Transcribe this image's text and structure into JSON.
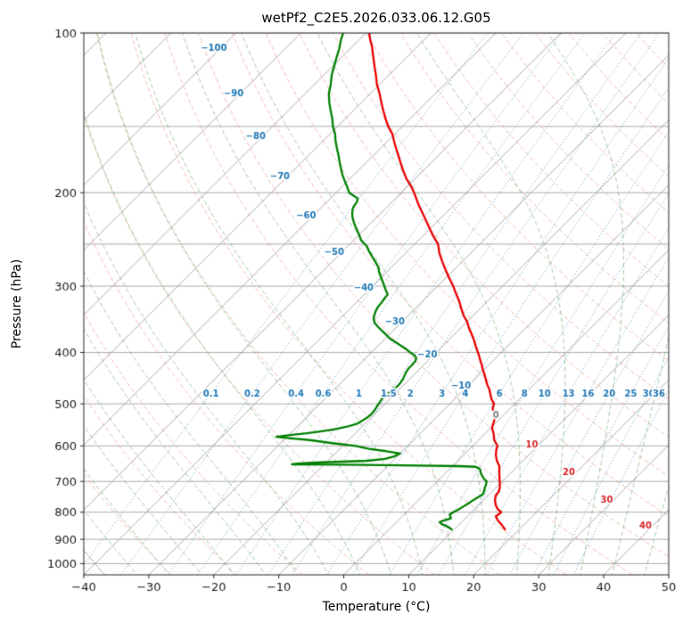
{
  "chart_data": {
    "type": "skewt_log_p",
    "title": "wetPf2_C2E5.2026.033.06.12.G05",
    "xlabel": "Temperature (°C)",
    "ylabel": "Pressure (hPa)",
    "xlim": [
      -40,
      50
    ],
    "plim": [
      100,
      1050
    ],
    "x_ticks": [
      -40,
      -30,
      -20,
      -10,
      0,
      10,
      20,
      30,
      40,
      50
    ],
    "y_ticks": [
      100,
      200,
      300,
      400,
      500,
      600,
      700,
      800,
      900,
      1000
    ],
    "pressure_lines": [
      100,
      150,
      200,
      250,
      300,
      400,
      500,
      600,
      700,
      800,
      900,
      1000
    ],
    "isotherm_step_c": 10,
    "skew_deg": 45,
    "isotherm_labels": {
      "values": [
        -100,
        -90,
        -80,
        -70,
        -60,
        -50,
        -40,
        -30,
        -20,
        -10,
        0,
        10,
        20,
        30,
        40
      ],
      "theta_k": 328.15
    },
    "mixing_ratios": [
      0.1,
      0.2,
      0.4,
      0.6,
      1,
      1.5,
      2,
      3,
      4,
      6,
      8,
      10,
      13,
      16,
      20,
      25,
      30,
      36
    ],
    "mixing_label_pressure": 478,
    "dry_adiabats": {
      "start_c": -40,
      "stop_c": 200,
      "step_c": 10
    },
    "moist_adiabats": {
      "start_c": -40,
      "stop_c": 45,
      "step_c": 5
    },
    "colors": {
      "temperature": "#e80000",
      "dewpoint": "#008000",
      "isotherm": "#a3a3a3",
      "pressure_line": "#a3a3a3",
      "dry_adiabat": "rgba(226,110,90,0.5)",
      "moist_adiabat": "rgba(56,140,60,0.5)",
      "mixing_ratio": "rgba(42,110,180,0.8)",
      "label_neg": "#1f77b4",
      "label_zero": "#7f7f7f",
      "label_pos": "#d62728",
      "axis_text": "#1a1a1a",
      "spine": "#262626"
    },
    "series": [
      {
        "name": "temperature",
        "points": [
          [
            862,
            17.8
          ],
          [
            845,
            16.6
          ],
          [
            830,
            15.4
          ],
          [
            815,
            14.4
          ],
          [
            800,
            14.6
          ],
          [
            790,
            13.6
          ],
          [
            775,
            12.6
          ],
          [
            760,
            11.8
          ],
          [
            745,
            11.2
          ],
          [
            730,
            11.0
          ],
          [
            715,
            10.4
          ],
          [
            700,
            9.6
          ],
          [
            685,
            8.8
          ],
          [
            670,
            8.0
          ],
          [
            655,
            7.2
          ],
          [
            640,
            6.0
          ],
          [
            625,
            5.0
          ],
          [
            610,
            4.2
          ],
          [
            600,
            3.8
          ],
          [
            585,
            2.4
          ],
          [
            570,
            1.4
          ],
          [
            555,
            0.2
          ],
          [
            540,
            -0.5
          ],
          [
            533,
            -0.8
          ],
          [
            520,
            -1.9
          ],
          [
            510,
            -2.7
          ],
          [
            500,
            -3.2
          ],
          [
            490,
            -4.3
          ],
          [
            480,
            -5.2
          ],
          [
            470,
            -6.1
          ],
          [
            460,
            -7.2
          ],
          [
            450,
            -8.2
          ],
          [
            440,
            -9.2
          ],
          [
            430,
            -10.3
          ],
          [
            423,
            -11.0
          ],
          [
            415,
            -11.9
          ],
          [
            405,
            -13.0
          ],
          [
            400,
            -13.6
          ],
          [
            390,
            -14.8
          ],
          [
            380,
            -16.0
          ],
          [
            370,
            -17.3
          ],
          [
            360,
            -18.7
          ],
          [
            350,
            -20.0
          ],
          [
            340,
            -21.6
          ],
          [
            330,
            -23.0
          ],
          [
            320,
            -24.4
          ],
          [
            310,
            -26.0
          ],
          [
            300,
            -27.6
          ],
          [
            290,
            -29.4
          ],
          [
            280,
            -31.2
          ],
          [
            270,
            -33.0
          ],
          [
            260,
            -34.8
          ],
          [
            250,
            -36.4
          ],
          [
            240,
            -38.7
          ],
          [
            230,
            -40.9
          ],
          [
            220,
            -43.2
          ],
          [
            211,
            -45.4
          ],
          [
            205,
            -46.8
          ],
          [
            200,
            -48.0
          ],
          [
            194,
            -49.6
          ],
          [
            188,
            -51.4
          ],
          [
            182,
            -53.0
          ],
          [
            176,
            -54.6
          ],
          [
            170,
            -56.2
          ],
          [
            165,
            -57.6
          ],
          [
            160,
            -59.0
          ],
          [
            155,
            -60.4
          ],
          [
            150,
            -62.2
          ],
          [
            145,
            -63.8
          ],
          [
            140,
            -65.4
          ],
          [
            135,
            -67.0
          ],
          [
            130,
            -68.6
          ],
          [
            125,
            -70.4
          ],
          [
            120,
            -72.0
          ],
          [
            116,
            -73.4
          ],
          [
            112,
            -74.8
          ],
          [
            109,
            -75.9
          ],
          [
            106,
            -77.0
          ],
          [
            103,
            -78.3
          ],
          [
            100,
            -79.5
          ]
        ]
      },
      {
        "name": "dewpoint",
        "points": [
          [
            862,
            9.6
          ],
          [
            852,
            8.6
          ],
          [
            842,
            7.2
          ],
          [
            835,
            6.6
          ],
          [
            830,
            7.0
          ],
          [
            822,
            7.8
          ],
          [
            815,
            7.4
          ],
          [
            808,
            7.0
          ],
          [
            800,
            7.2
          ],
          [
            790,
            7.6
          ],
          [
            780,
            7.9
          ],
          [
            770,
            8.2
          ],
          [
            760,
            8.4
          ],
          [
            750,
            8.7
          ],
          [
            740,
            9.0
          ],
          [
            730,
            8.7
          ],
          [
            720,
            8.3
          ],
          [
            710,
            8.0
          ],
          [
            700,
            7.6
          ],
          [
            690,
            6.6
          ],
          [
            680,
            5.8
          ],
          [
            672,
            5.2
          ],
          [
            665,
            4.8
          ],
          [
            660,
            4.2
          ],
          [
            657,
            3.6
          ],
          [
            655,
            1.0
          ],
          [
            653,
            -8.0
          ],
          [
            651,
            -17.0
          ],
          [
            650,
            -25.0
          ],
          [
            648,
            -24.2
          ],
          [
            645,
            -21.5
          ],
          [
            640,
            -14.0
          ],
          [
            635,
            -11.5
          ],
          [
            628,
            -10.5
          ],
          [
            620,
            -10.0
          ],
          [
            614,
            -12.5
          ],
          [
            608,
            -15.5
          ],
          [
            600,
            -18.0
          ],
          [
            593,
            -22.0
          ],
          [
            585,
            -26.0
          ],
          [
            580,
            -29.5
          ],
          [
            577,
            -31.6
          ],
          [
            572,
            -29.5
          ],
          [
            568,
            -27.5
          ],
          [
            563,
            -25.5
          ],
          [
            558,
            -23.8
          ],
          [
            552,
            -22.3
          ],
          [
            545,
            -21.2
          ],
          [
            538,
            -20.9
          ],
          [
            530,
            -20.6
          ],
          [
            522,
            -20.5
          ],
          [
            514,
            -20.6
          ],
          [
            506,
            -20.8
          ],
          [
            498,
            -21.0
          ],
          [
            490,
            -21.2
          ],
          [
            482,
            -21.2
          ],
          [
            474,
            -21.0
          ],
          [
            466,
            -20.8
          ],
          [
            458,
            -20.8
          ],
          [
            450,
            -21.0
          ],
          [
            443,
            -21.3
          ],
          [
            436,
            -21.6
          ],
          [
            429,
            -21.8
          ],
          [
            422,
            -21.8
          ],
          [
            415,
            -21.9
          ],
          [
            410,
            -22.2
          ],
          [
            405,
            -22.9
          ],
          [
            400,
            -24.0
          ],
          [
            394,
            -25.2
          ],
          [
            388,
            -26.6
          ],
          [
            382,
            -28.0
          ],
          [
            376,
            -29.4
          ],
          [
            370,
            -30.5
          ],
          [
            364,
            -31.7
          ],
          [
            358,
            -32.9
          ],
          [
            352,
            -34.0
          ],
          [
            346,
            -34.8
          ],
          [
            340,
            -35.3
          ],
          [
            334,
            -35.7
          ],
          [
            328,
            -36.0
          ],
          [
            322,
            -36.1
          ],
          [
            316,
            -36.3
          ],
          [
            311,
            -36.4
          ],
          [
            305,
            -37.4
          ],
          [
            300,
            -38.2
          ],
          [
            295,
            -39.0
          ],
          [
            288,
            -40.2
          ],
          [
            282,
            -41.2
          ],
          [
            277,
            -41.9
          ],
          [
            270,
            -43.3
          ],
          [
            264,
            -44.6
          ],
          [
            258,
            -45.9
          ],
          [
            252,
            -47.1
          ],
          [
            246,
            -48.8
          ],
          [
            240,
            -50.0
          ],
          [
            234,
            -51.3
          ],
          [
            228,
            -52.6
          ],
          [
            222,
            -53.8
          ],
          [
            219,
            -54.3
          ],
          [
            215,
            -54.9
          ],
          [
            212,
            -55.2
          ],
          [
            208,
            -55.4
          ],
          [
            205,
            -55.8
          ],
          [
            200,
            -58.0
          ],
          [
            195,
            -59.2
          ],
          [
            190,
            -60.5
          ],
          [
            185,
            -61.8
          ],
          [
            180,
            -63.0
          ],
          [
            175,
            -64.2
          ],
          [
            170,
            -65.4
          ],
          [
            165,
            -66.7
          ],
          [
            160,
            -68.0
          ],
          [
            155,
            -69.2
          ],
          [
            150,
            -70.7
          ],
          [
            145,
            -72.0
          ],
          [
            140,
            -73.5
          ],
          [
            135,
            -75.0
          ],
          [
            130,
            -76.4
          ],
          [
            125,
            -77.5
          ],
          [
            120,
            -78.8
          ],
          [
            115,
            -79.9
          ],
          [
            111,
            -80.8
          ],
          [
            107,
            -81.7
          ],
          [
            103,
            -82.8
          ],
          [
            100,
            -83.5
          ]
        ]
      }
    ]
  }
}
